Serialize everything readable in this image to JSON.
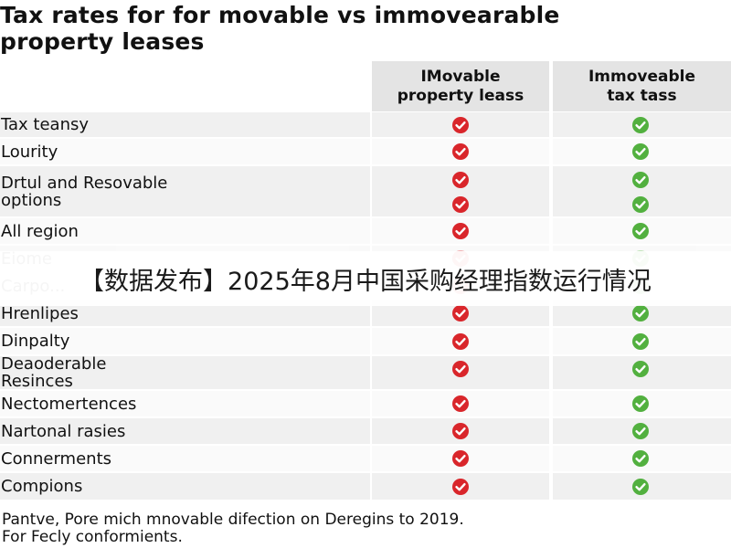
{
  "title": "Tax rates for for movable vs immovearable\nproperty leases",
  "columns": {
    "movable": "IMovable\nproperty leass",
    "immovable": "Immoveable\ntax tass"
  },
  "rows": [
    {
      "label": "Tax teansy",
      "movable": "check",
      "immovable": "check"
    },
    {
      "label": "Lourity",
      "movable": "check",
      "immovable": "check"
    },
    {
      "label": "Drtul and Resovable\noptions",
      "movable": "check",
      "immovable": "check"
    },
    {
      "label": "All region",
      "movable": "check",
      "immovable": "check"
    },
    {
      "label": "Eiome",
      "movable": "check",
      "immovable": "check"
    },
    {
      "label": "Carpo...",
      "movable": "check",
      "immovable": "check"
    },
    {
      "label": "Hrenlipes",
      "movable": "check",
      "immovable": "check"
    },
    {
      "label": "Dinpalty",
      "movable": "check",
      "immovable": "check"
    },
    {
      "label": "Deaoderable\nResinces",
      "movable": "check",
      "immovable": "check"
    },
    {
      "label": "Nectomertences",
      "movable": "check",
      "immovable": "check"
    },
    {
      "label": "Nartonal rasies",
      "movable": "check",
      "immovable": "check"
    },
    {
      "label": "Connerments",
      "movable": "check",
      "immovable": "check"
    },
    {
      "label": "Compions",
      "movable": "check",
      "immovable": "check"
    }
  ],
  "overlay_banner": "【数据发布】2025年8月中国采购经理指数运行情况",
  "footnote": "Pantve, Pore mich mnovable difection on Deregins to 2019.\nFor Fecly conformients.",
  "colors": {
    "movable_mark": "#d9262b",
    "immovable_mark": "#52b03f",
    "header_bg": "#e4e4e4",
    "row_bg": "#f0f0f0"
  },
  "icons": {
    "movable": "red-check-circle-icon",
    "immovable": "green-check-circle-icon"
  }
}
